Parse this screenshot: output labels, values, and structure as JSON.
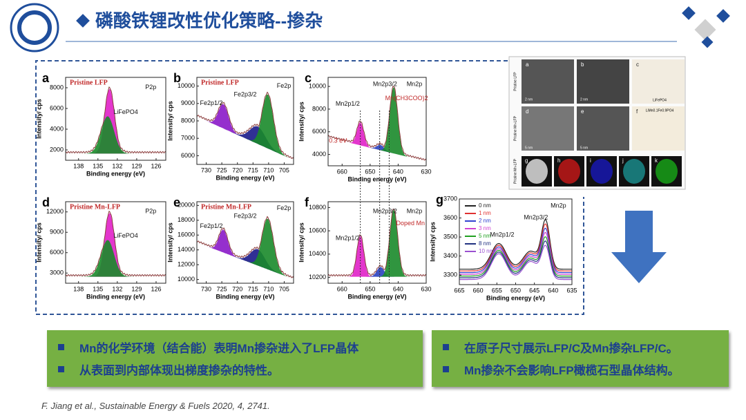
{
  "header": {
    "title": "磷酸铁锂改性优化策略--掺杂"
  },
  "figure": {
    "panels": [
      {
        "letter": "a",
        "title": "Pristine LFP",
        "labels": [
          "P2p",
          "LiFePO4"
        ],
        "y_label": "Intensity/ cps",
        "x_label": "Binding energy (eV)",
        "xlim": [
          140,
          124.5
        ],
        "xticks": [
          138,
          135,
          132,
          129,
          126
        ],
        "ylim": [
          1000,
          9000
        ],
        "yticks": [
          2000,
          4000,
          6000,
          8000
        ]
      },
      {
        "letter": "b",
        "title": "Pristine LFP",
        "labels": [
          "Fe2p",
          "Fe2p1/2",
          "Fe2p3/2"
        ],
        "y_label": "Intensity/ cps",
        "x_label": "Binding energy (eV)",
        "xlim": [
          733,
          702
        ],
        "xticks": [
          730,
          725,
          720,
          715,
          710,
          705
        ],
        "ylim": [
          5500,
          10500
        ],
        "yticks": [
          6000,
          7000,
          8000,
          9000,
          10000
        ]
      },
      {
        "letter": "c",
        "title": "",
        "labels": [
          "Mn2p1/2",
          "Mn2p3/2",
          "Mn2p",
          "Mn(CH3COO)2",
          "0.3 eV"
        ],
        "y_label": "Intensity/ cps",
        "x_label": "Binding energy (eV)",
        "xlim": [
          665,
          630
        ],
        "xticks": [
          660,
          650,
          640,
          630
        ],
        "ylim": [
          3000,
          10800
        ],
        "yticks": [
          4000,
          6000,
          8000,
          10000
        ]
      },
      {
        "letter": "d",
        "title": "Pristine Mn-LFP",
        "labels": [
          "P2p",
          "LiFePO4"
        ],
        "y_label": "Intensity/ cps",
        "x_label": "Binding energy (eV)",
        "xlim": [
          140,
          124.5
        ],
        "xticks": [
          138,
          135,
          132,
          129,
          126
        ],
        "ylim": [
          1500,
          13500
        ],
        "yticks": [
          3000,
          6000,
          9000,
          12000
        ]
      },
      {
        "letter": "e",
        "title": "Pristine Mn-LFP",
        "labels": [
          "Fe2p",
          "Fe2p1/2",
          "Fe2p3/2"
        ],
        "y_label": "Intensity/ cps",
        "x_label": "Binding energy (eV)",
        "xlim": [
          733,
          702
        ],
        "xticks": [
          730,
          725,
          720,
          715,
          710,
          705
        ],
        "ylim": [
          9500,
          20500
        ],
        "yticks": [
          10000,
          12000,
          14000,
          16000,
          18000,
          20000
        ]
      },
      {
        "letter": "f",
        "title": "",
        "labels": [
          "Mn2p1/2",
          "Mn2p3/2",
          "Mn2p",
          "Doped Mn"
        ],
        "y_label": "Intensity/ cps",
        "x_label": "Binding energy (eV)",
        "xlim": [
          665,
          630
        ],
        "xticks": [
          660,
          650,
          640,
          630
        ],
        "ylim": [
          10150,
          10850
        ],
        "yticks": [
          10200,
          10400,
          10600,
          10800
        ]
      },
      {
        "letter": "g",
        "title": "",
        "labels": [
          "Mn2p1/2",
          "Mn2p3/2",
          "Mn2p"
        ],
        "y_label": "Intensity/ cps",
        "x_label": "Binding energy (eV)",
        "xlim": [
          665,
          635
        ],
        "xticks": [
          665,
          660,
          655,
          650,
          645,
          640,
          635
        ],
        "ylim": [
          3250,
          3700
        ],
        "yticks": [
          3300,
          3400,
          3500,
          3600,
          3700
        ],
        "legend": [
          {
            "name": "0 nm",
            "color": "#222222"
          },
          {
            "name": "1 nm",
            "color": "#e03030"
          },
          {
            "name": "2 nm",
            "color": "#3040d0"
          },
          {
            "name": "3 nm",
            "color": "#d040d0"
          },
          {
            "name": "5 nm",
            "color": "#20a020"
          },
          {
            "name": "8 nm",
            "color": "#203080"
          },
          {
            "name": "10 nm",
            "color": "#9a50d0"
          }
        ]
      }
    ],
    "tem": {
      "letters": [
        "a",
        "b",
        "c",
        "d",
        "e",
        "f",
        "g",
        "h",
        "i",
        "j",
        "k"
      ],
      "row_labels": [
        "Pristine LFP",
        "Pristine Mn-LFP",
        "Pristine Mn-LFP"
      ],
      "scales": [
        "2 nm",
        "2 nm",
        "5 nm",
        "5 nm"
      ],
      "phases": [
        "LiFePO4",
        "LiMn0.1Fe0.9PO4"
      ]
    }
  },
  "bullets": {
    "left": [
      "Mn的化学环境（结合能）表明Mn掺杂进入了LFP晶体",
      "从表面到内部体现出梯度掺杂的特性。"
    ],
    "right": [
      "在原子尺寸展示LFP/C及Mn掺杂LFP/C。",
      "Mn掺杂不会影响LFP橄榄石型晶体结构。"
    ]
  },
  "citation": "F. Jiang et al., Sustainable Energy & Fuels 2020, 4, 2741."
}
